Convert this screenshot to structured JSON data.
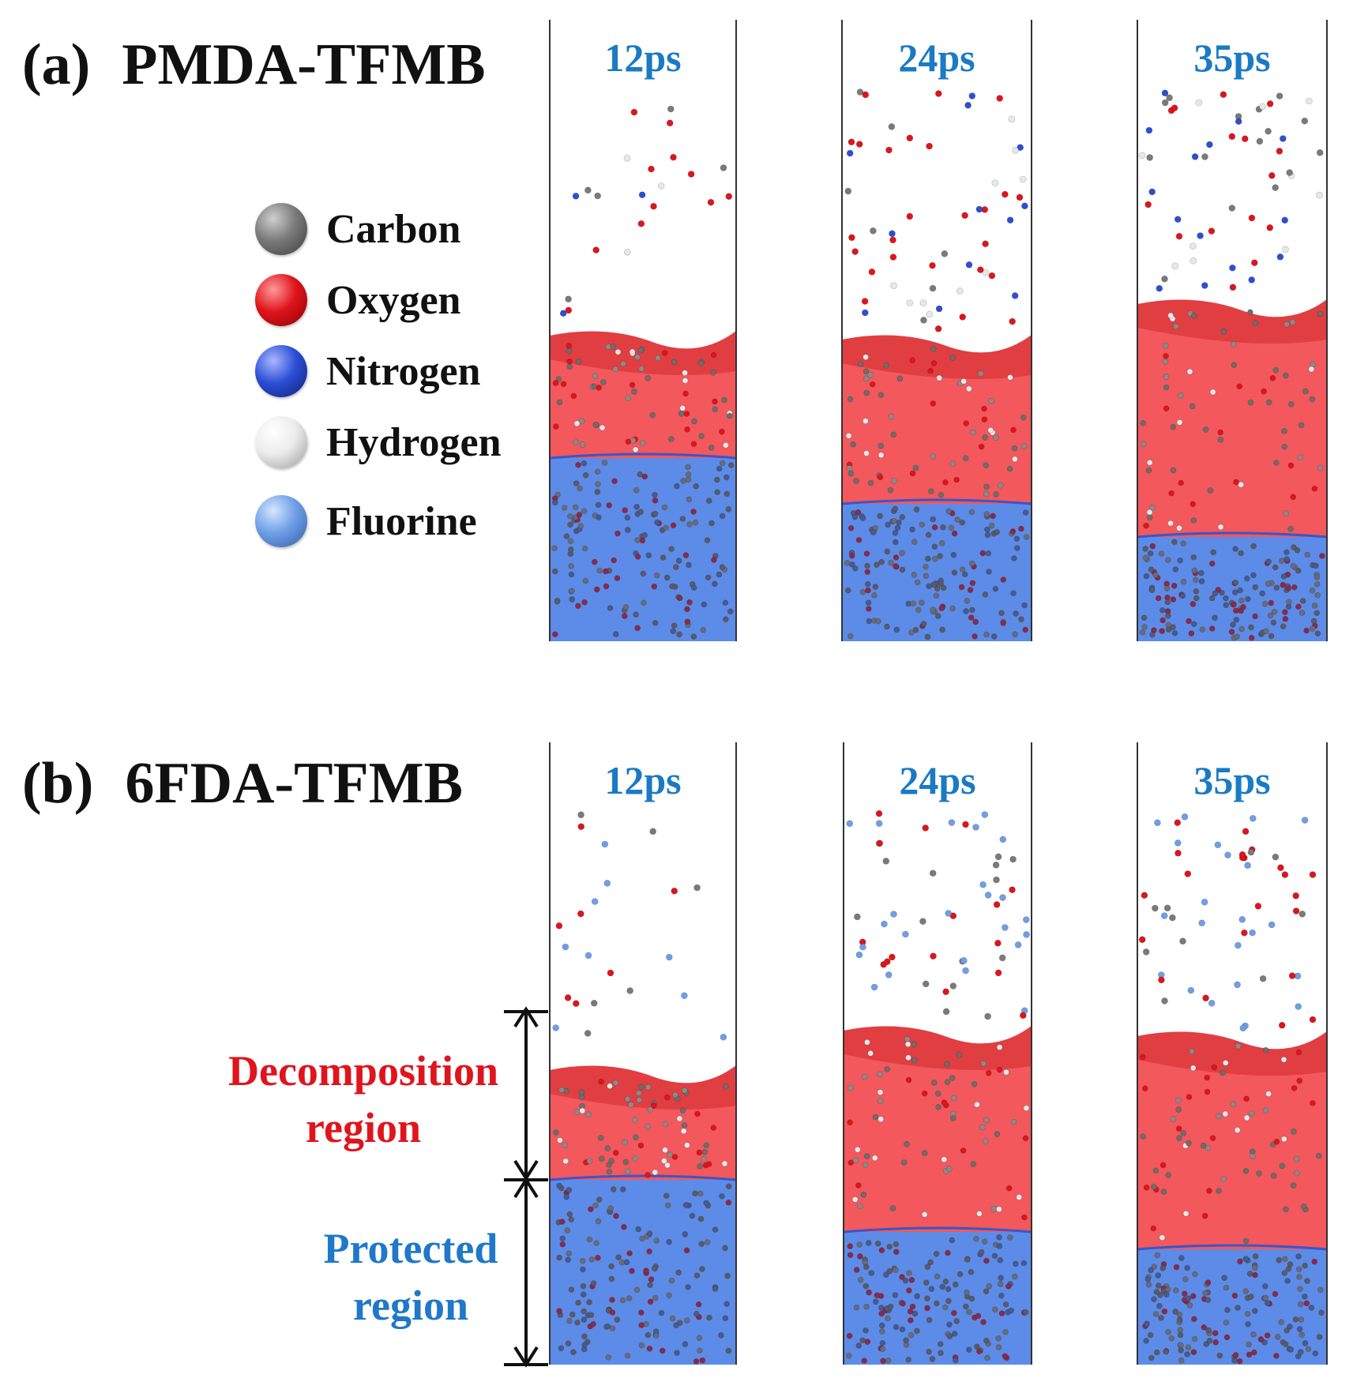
{
  "panels": [
    {
      "tag": "(a)",
      "name": "PMDA-TFMB",
      "times": [
        "12ps",
        "24ps",
        "35ps"
      ]
    },
    {
      "tag": "(b)",
      "name": "6FDA-TFMB",
      "times": [
        "12ps",
        "24ps",
        "35ps"
      ]
    }
  ],
  "legend": [
    {
      "label": "Carbon",
      "color": "#7a7a7a",
      "icon": "carbon-atom-icon"
    },
    {
      "label": "Oxygen",
      "color": "#e0141c",
      "icon": "oxygen-atom-icon"
    },
    {
      "label": "Nitrogen",
      "color": "#2d4fd6",
      "icon": "nitrogen-atom-icon"
    },
    {
      "label": "Hydrogen",
      "color": "#e8e8e8",
      "icon": "hydrogen-atom-icon"
    },
    {
      "label": "Fluorine",
      "color": "#6f9fe6",
      "icon": "fluorine-atom-icon"
    }
  ],
  "regions": {
    "decomposition": {
      "line1": "Decomposition",
      "line2": "region",
      "color": "#e0141c"
    },
    "protected": {
      "line1": "Protected",
      "line2": "region",
      "color": "#1f78c8"
    }
  },
  "colors": {
    "red_region": "#f2585c",
    "red_dark": "#d42a2e",
    "blue_region": "#5c8ce8",
    "time_label": "#1a7ac4"
  }
}
